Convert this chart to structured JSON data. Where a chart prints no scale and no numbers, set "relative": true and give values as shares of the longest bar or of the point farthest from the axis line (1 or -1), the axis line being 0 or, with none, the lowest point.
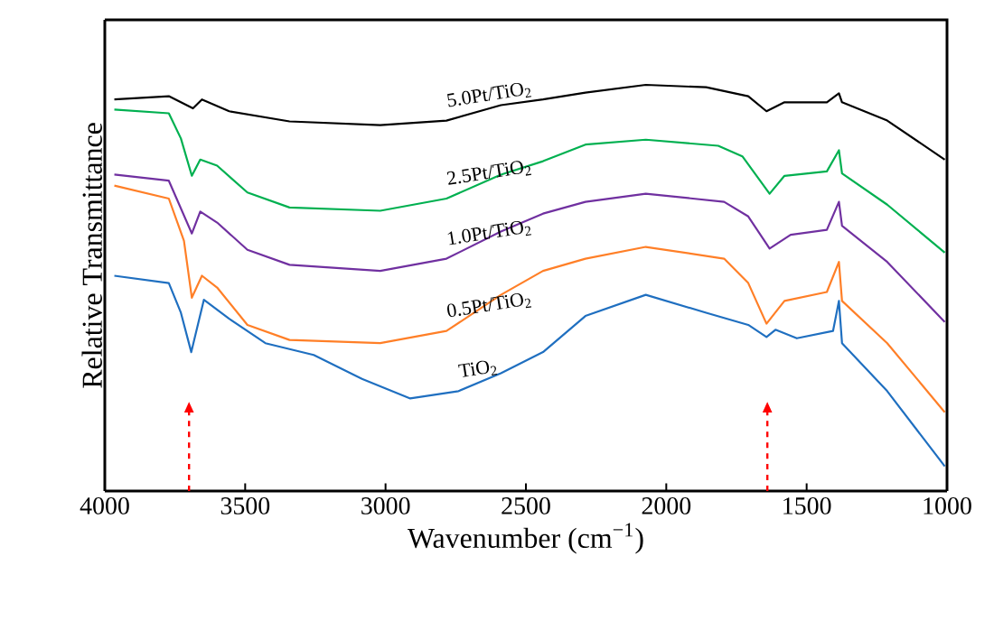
{
  "chart_data": {
    "type": "line",
    "relative": true,
    "xlabel": "Wavenumber (cm$^{−1}$)",
    "ylabel": "Relative Transmittance",
    "xlim": [
      4000,
      1000
    ],
    "xticks": [
      4000,
      3500,
      3000,
      2500,
      2000,
      1500,
      1000
    ],
    "grid": false,
    "line_style": "solid",
    "marker": "none",
    "ref_lines": [
      {
        "axis": "x",
        "value": 3700,
        "color": "#ff0000",
        "line_style": "dashed"
      },
      {
        "axis": "x",
        "value": 1640,
        "color": "#ff0000",
        "line_style": "dashed"
      }
    ],
    "series": [
      {
        "name": "5.0Pt/TiO$_{2}$",
        "color": "#000000",
        "x": [
          3966,
          3772,
          3686,
          3654,
          3557,
          3342,
          3019,
          2783,
          2589,
          2439,
          2288,
          2073,
          1858,
          1708,
          1643,
          1579,
          1428,
          1385,
          1374,
          1213,
          1008
        ],
        "values": [
          0.964,
          0.972,
          0.942,
          0.964,
          0.935,
          0.91,
          0.901,
          0.912,
          0.95,
          0.964,
          0.981,
          1,
          0.994,
          0.972,
          0.935,
          0.957,
          0.957,
          0.979,
          0.957,
          0.912,
          0.816
        ]
      },
      {
        "name": "2.5Pt/TiO$_{2}$",
        "color": "#00b050",
        "x": [
          3966,
          3772,
          3729,
          3690,
          3660,
          3600,
          3492,
          3342,
          3019,
          2783,
          2589,
          2439,
          2288,
          2073,
          1815,
          1729,
          1632,
          1579,
          1428,
          1385,
          1374,
          1213,
          1008
        ],
        "values": [
          0.939,
          0.93,
          0.868,
          0.776,
          0.816,
          0.801,
          0.735,
          0.698,
          0.69,
          0.72,
          0.779,
          0.812,
          0.853,
          0.865,
          0.85,
          0.824,
          0.732,
          0.776,
          0.787,
          0.839,
          0.782,
          0.705,
          0.587
        ]
      },
      {
        "name": "1.0Pt/TiO$_{2}$",
        "color": "#7030a0",
        "x": [
          3966,
          3772,
          3690,
          3660,
          3600,
          3492,
          3342,
          3019,
          2783,
          2589,
          2439,
          2288,
          2073,
          1794,
          1708,
          1632,
          1557,
          1428,
          1385,
          1374,
          1213,
          1008
        ],
        "values": [
          0.779,
          0.764,
          0.634,
          0.688,
          0.661,
          0.594,
          0.557,
          0.542,
          0.572,
          0.639,
          0.683,
          0.712,
          0.732,
          0.712,
          0.676,
          0.597,
          0.631,
          0.643,
          0.712,
          0.653,
          0.564,
          0.416
        ]
      },
      {
        "name": "0.5Pt/TiO$_{2}$",
        "color": "#ff7f27",
        "x": [
          3966,
          3772,
          3718,
          3690,
          3654,
          3600,
          3492,
          3342,
          3019,
          2783,
          2589,
          2439,
          2288,
          2073,
          1794,
          1708,
          1643,
          1579,
          1428,
          1385,
          1374,
          1213,
          1008
        ],
        "values": [
          0.752,
          0.72,
          0.616,
          0.476,
          0.53,
          0.501,
          0.409,
          0.372,
          0.364,
          0.394,
          0.483,
          0.542,
          0.572,
          0.601,
          0.572,
          0.512,
          0.412,
          0.468,
          0.49,
          0.564,
          0.468,
          0.364,
          0.194
        ]
      },
      {
        "name": "TiO$_{2}$",
        "color": "#1f6fc0",
        "x": [
          3966,
          3772,
          3729,
          3692,
          3647,
          3557,
          3428,
          3256,
          3084,
          2912,
          2740,
          2589,
          2439,
          2288,
          2073,
          1858,
          1708,
          1643,
          1611,
          1535,
          1406,
          1385,
          1374,
          1213,
          1008
        ],
        "values": [
          0.53,
          0.512,
          0.439,
          0.342,
          0.471,
          0.424,
          0.364,
          0.335,
          0.276,
          0.228,
          0.246,
          0.29,
          0.342,
          0.431,
          0.483,
          0.439,
          0.409,
          0.379,
          0.397,
          0.376,
          0.394,
          0.468,
          0.364,
          0.246,
          0.061
        ]
      }
    ]
  }
}
